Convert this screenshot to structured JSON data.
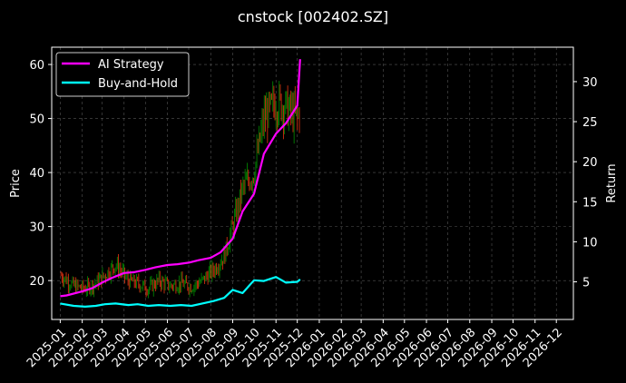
{
  "chart_data": {
    "type": "line",
    "title": "cnstock [002402.SZ]",
    "ylabel": "Price",
    "y2label": "Return",
    "xlim": [
      "2024-12-20",
      "2026-12-25"
    ],
    "ylim": [
      12.8,
      63.2
    ],
    "y2lim": [
      0.3,
      34.3
    ],
    "x_ticks": [
      "2025-01",
      "2025-02",
      "2025-03",
      "2025-04",
      "2025-05",
      "2025-06",
      "2025-07",
      "2025-08",
      "2025-09",
      "2025-10",
      "2025-11",
      "2025-12",
      "2026-01",
      "2026-02",
      "2026-03",
      "2026-04",
      "2026-05",
      "2026-06",
      "2026-07",
      "2026-08",
      "2026-09",
      "2026-10",
      "2026-11",
      "2026-12"
    ],
    "y_ticks": [
      20,
      30,
      40,
      50,
      60
    ],
    "y2_ticks": [
      5,
      10,
      15,
      20,
      25,
      30
    ],
    "grid": true,
    "legend_position": "top-left",
    "background": "#000000",
    "price_series": {
      "name": "Price",
      "up_color": "#008000",
      "down_color": "#d03010",
      "x": [
        "2025-01-02",
        "2025-01-20",
        "2025-02-05",
        "2025-02-20",
        "2025-03-05",
        "2025-03-20",
        "2025-04-07",
        "2025-04-20",
        "2025-05-05",
        "2025-05-20",
        "2025-06-05",
        "2025-06-20",
        "2025-07-05",
        "2025-07-20",
        "2025-08-05",
        "2025-08-20",
        "2025-09-01",
        "2025-09-15",
        "2025-10-01",
        "2025-10-15",
        "2025-11-01",
        "2025-11-15",
        "2025-12-01",
        "2025-12-05"
      ],
      "values": [
        21,
        19,
        18.5,
        19.5,
        21,
        23,
        20,
        19.5,
        18.5,
        20,
        19,
        19.5,
        18.8,
        20,
        22,
        24.5,
        30,
        37,
        40,
        50,
        53,
        52,
        50,
        52
      ]
    },
    "series": [
      {
        "name": "AI Strategy",
        "color": "#ff00ff",
        "axis": "right",
        "x": [
          "2025-01-01",
          "2025-01-10",
          "2025-02-01",
          "2025-02-15",
          "2025-03-01",
          "2025-03-15",
          "2025-04-01",
          "2025-04-15",
          "2025-05-01",
          "2025-05-15",
          "2025-06-01",
          "2025-06-15",
          "2025-07-01",
          "2025-07-15",
          "2025-08-01",
          "2025-08-15",
          "2025-09-01",
          "2025-09-15",
          "2025-10-01",
          "2025-10-15",
          "2025-11-01",
          "2025-11-15",
          "2025-12-01",
          "2025-12-05"
        ],
        "values": [
          3.2,
          3.3,
          3.8,
          4.2,
          4.9,
          5.5,
          6.1,
          6.2,
          6.5,
          6.8,
          7.1,
          7.2,
          7.4,
          7.7,
          8.0,
          8.7,
          10.4,
          13.8,
          16.0,
          21.0,
          23.5,
          24.8,
          27.0,
          32.8
        ]
      },
      {
        "name": "Buy-and-Hold",
        "color": "#00ffff",
        "axis": "right",
        "x": [
          "2025-01-01",
          "2025-01-20",
          "2025-02-05",
          "2025-02-20",
          "2025-03-05",
          "2025-03-20",
          "2025-04-07",
          "2025-04-20",
          "2025-05-05",
          "2025-05-20",
          "2025-06-05",
          "2025-06-20",
          "2025-07-05",
          "2025-07-20",
          "2025-08-05",
          "2025-08-20",
          "2025-09-01",
          "2025-09-15",
          "2025-10-01",
          "2025-10-15",
          "2025-11-01",
          "2025-11-15",
          "2025-12-01",
          "2025-12-05"
        ],
        "values": [
          2.3,
          2.0,
          1.9,
          2.0,
          2.2,
          2.3,
          2.1,
          2.2,
          2.0,
          2.1,
          2.0,
          2.1,
          2.0,
          2.3,
          2.6,
          3.0,
          4.0,
          3.6,
          5.2,
          5.1,
          5.6,
          4.9,
          5.0,
          5.3
        ]
      }
    ]
  }
}
